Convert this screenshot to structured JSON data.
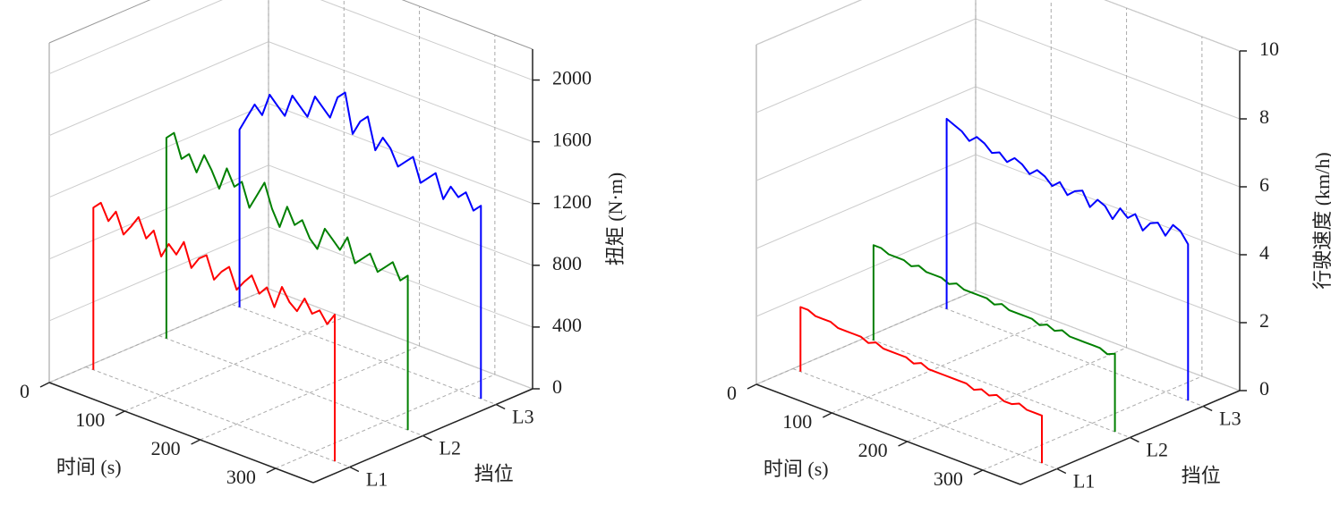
{
  "chart_data": [
    {
      "type": "line3d",
      "x_label": "时间 (s)",
      "category_label": "挡位",
      "z_label": "扭矩 (N·m)",
      "x": [
        10,
        10,
        20,
        30,
        40,
        50,
        60,
        70,
        80,
        90,
        100,
        110,
        120,
        130,
        140,
        150,
        160,
        170,
        180,
        190,
        200,
        210,
        220,
        230,
        240,
        250,
        260,
        270,
        280,
        290,
        300,
        310,
        320,
        330,
        330
      ],
      "xlim": [
        0,
        350
      ],
      "xticks": [
        0,
        100,
        200,
        300
      ],
      "categories": [
        "L1",
        "L2",
        "L3"
      ],
      "zlim": [
        0,
        2200
      ],
      "zticks": [
        0,
        400,
        800,
        1200,
        1600,
        2000
      ],
      "series": [
        {
          "color": "#ff0000",
          "values": [
            0,
            1050,
            1100,
            1000,
            1080,
            950,
            1020,
            1100,
            980,
            1050,
            900,
            1000,
            950,
            1050,
            900,
            980,
            1020,
            880,
            950,
            1000,
            870,
            940,
            1000,
            900,
            960,
            850,
            1000,
            920,
            880,
            980,
            900,
            940,
            870,
            950,
            0
          ]
        },
        {
          "color": "#008000",
          "values": [
            0,
            1300,
            1350,
            1200,
            1250,
            1150,
            1280,
            1200,
            1100,
            1250,
            1150,
            1200,
            1050,
            1150,
            1250,
            1100,
            1000,
            1150,
            1050,
            1100,
            1000,
            950,
            1100,
            1050,
            1000,
            1100,
            950,
            1000,
            1050,
            950,
            1000,
            1050,
            950,
            1000,
            0
          ]
        },
        {
          "color": "#0000ff",
          "values": [
            0,
            1150,
            1250,
            1350,
            1300,
            1450,
            1400,
            1350,
            1500,
            1450,
            1400,
            1550,
            1500,
            1450,
            1600,
            1650,
            1400,
            1500,
            1550,
            1350,
            1450,
            1400,
            1300,
            1350,
            1400,
            1250,
            1300,
            1350,
            1200,
            1300,
            1250,
            1300,
            1200,
            1250,
            0
          ]
        }
      ]
    },
    {
      "type": "line3d",
      "x_label": "时间 (s)",
      "category_label": "挡位",
      "z_label": "行驶速度 (km/h)",
      "x": [
        10,
        10,
        20,
        30,
        40,
        50,
        60,
        70,
        80,
        90,
        100,
        110,
        120,
        130,
        140,
        150,
        160,
        170,
        180,
        190,
        200,
        210,
        220,
        230,
        240,
        250,
        260,
        270,
        280,
        290,
        300,
        310,
        320,
        330,
        330
      ],
      "xlim": [
        0,
        350
      ],
      "xticks": [
        0,
        100,
        200,
        300
      ],
      "categories": [
        "L1",
        "L2",
        "L3"
      ],
      "zlim": [
        0,
        10
      ],
      "zticks": [
        0,
        2,
        4,
        6,
        8,
        10
      ],
      "series": [
        {
          "color": "#ff0000",
          "values": [
            0,
            1.9,
            1.9,
            1.8,
            1.8,
            1.8,
            1.7,
            1.7,
            1.7,
            1.7,
            1.6,
            1.7,
            1.6,
            1.6,
            1.6,
            1.6,
            1.5,
            1.6,
            1.5,
            1.5,
            1.5,
            1.5,
            1.5,
            1.5,
            1.4,
            1.5,
            1.4,
            1.5,
            1.4,
            1.4,
            1.5,
            1.4,
            1.4,
            1.4,
            0
          ]
        },
        {
          "color": "#008000",
          "values": [
            0,
            2.8,
            2.8,
            2.7,
            2.7,
            2.7,
            2.6,
            2.7,
            2.6,
            2.6,
            2.6,
            2.5,
            2.6,
            2.5,
            2.5,
            2.5,
            2.5,
            2.4,
            2.5,
            2.4,
            2.4,
            2.4,
            2.4,
            2.3,
            2.4,
            2.3,
            2.4,
            2.3,
            2.3,
            2.3,
            2.3,
            2.3,
            2.2,
            2.3,
            0
          ]
        },
        {
          "color": "#0000ff",
          "values": [
            0,
            5.6,
            5.5,
            5.4,
            5.2,
            5.4,
            5.3,
            5.1,
            5.2,
            5.0,
            5.2,
            5.1,
            4.9,
            5.1,
            5.0,
            4.8,
            5.0,
            4.7,
            4.9,
            5.0,
            4.6,
            4.9,
            4.8,
            4.5,
            4.9,
            4.7,
            4.9,
            4.5,
            4.8,
            4.9,
            4.6,
            5.0,
            4.9,
            4.6,
            0
          ]
        }
      ]
    }
  ]
}
